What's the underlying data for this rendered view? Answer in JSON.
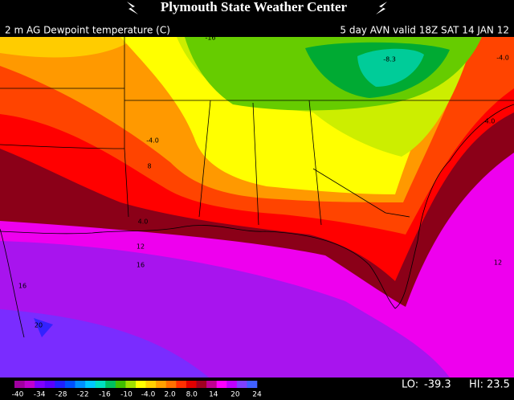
{
  "header": {
    "title": "Plymouth State Weather Center",
    "field": "2 m AG Dewpoint temperature (C)",
    "valid": "5 day AVN valid 18Z SAT 14 JAN 12"
  },
  "map": {
    "contour_labels": [
      "-16",
      "-8.3",
      "-4.0",
      "-4.0",
      "4.0",
      "8",
      "4.0",
      "12",
      "16",
      "12",
      "16",
      "20"
    ]
  },
  "legend": {
    "labels": [
      "-40",
      "-34",
      "-28",
      "-22",
      "-16",
      "-10",
      "-4.0",
      "2.0",
      "8.0",
      "14",
      "20",
      "24"
    ],
    "lo_label": "LO:",
    "lo": -39.3,
    "hi_label": "HI:",
    "hi": 23.5
  }
}
